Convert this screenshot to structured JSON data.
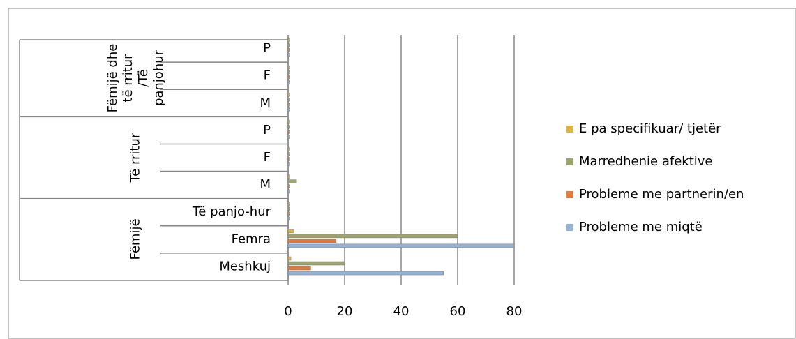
{
  "chart_data": {
    "type": "bar",
    "orientation": "horizontal",
    "groups": [
      {
        "name": "Fëmijë",
        "categories": [
          "Meshkuj",
          "Femra",
          "Të panjo-hur"
        ]
      },
      {
        "name": "Të rritur",
        "categories": [
          "M",
          "F",
          "P"
        ]
      },
      {
        "name": "Fëmijë dhe të rritur /Të panjohur",
        "categories": [
          "M",
          "F",
          "P"
        ]
      }
    ],
    "series": [
      {
        "name": "Probleme me miqtë",
        "color": "#95b3d7",
        "values": [
          55,
          80,
          0,
          0,
          0,
          0,
          0,
          0,
          0
        ]
      },
      {
        "name": "Probleme me partnerin/en",
        "color": "#e07b39",
        "values": [
          8,
          17,
          0,
          0,
          0,
          0,
          0,
          0,
          0
        ]
      },
      {
        "name": "Marredhenie afektive",
        "color": "#9ea46e",
        "values": [
          20,
          60,
          0,
          3,
          0,
          0,
          0,
          0,
          0
        ]
      },
      {
        "name": "E pa specifikuar/ tjetër",
        "color": "#e0b347",
        "values": [
          1,
          2,
          0,
          0,
          0,
          0,
          0,
          0,
          0
        ]
      }
    ],
    "xlim": [
      0,
      80
    ],
    "xticks": [
      0,
      20,
      40,
      60,
      80
    ],
    "grid": true,
    "legend": "right"
  }
}
